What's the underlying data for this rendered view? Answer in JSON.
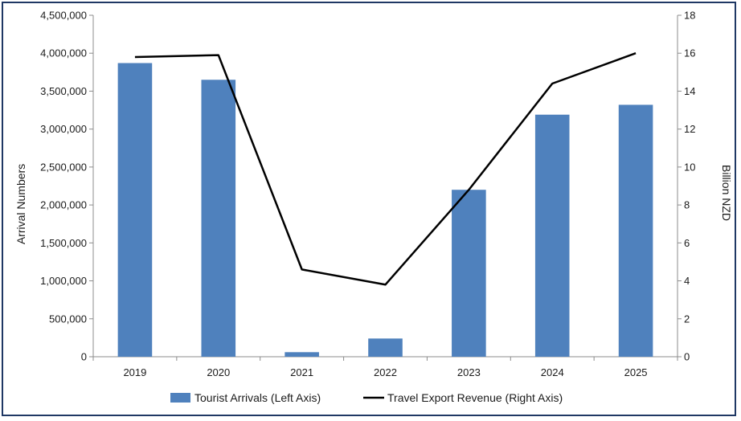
{
  "chart_data": {
    "type": "bar",
    "categories": [
      "2019",
      "2020",
      "2021",
      "2022",
      "2023",
      "2024",
      "2025"
    ],
    "series": [
      {
        "name": "Tourist Arrivals (Left Axis)",
        "type": "bar",
        "axis": "left",
        "color": "#4f81bd",
        "values": [
          3870000,
          3650000,
          60000,
          240000,
          2200000,
          3190000,
          3320000
        ]
      },
      {
        "name": "Travel Export Revenue (Right Axis)",
        "type": "line",
        "axis": "right",
        "color": "#000000",
        "values": [
          15.8,
          15.9,
          4.6,
          3.8,
          8.8,
          14.4,
          16.0
        ]
      }
    ],
    "ylabel": "Arrival Numbers",
    "ylabel_right": "Billion NZD",
    "ylim": [
      0,
      4500000
    ],
    "ylim_right": [
      0,
      18
    ],
    "yticks_left": [
      "0",
      "500,000",
      "1,000,000",
      "1,500,000",
      "2,000,000",
      "2,500,000",
      "3,000,000",
      "3,500,000",
      "4,000,000",
      "4,500,000"
    ],
    "yticks_right": [
      "0",
      "2",
      "4",
      "6",
      "8",
      "10",
      "12",
      "14",
      "16",
      "18"
    ],
    "grid": false,
    "legend": "bottom"
  }
}
